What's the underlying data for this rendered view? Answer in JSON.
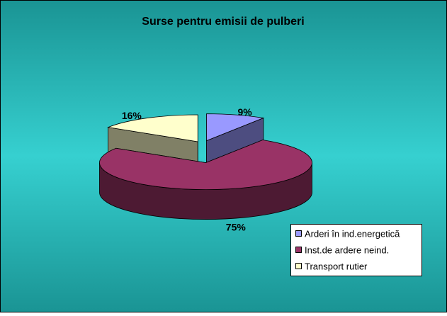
{
  "chart_data": {
    "type": "pie",
    "title": "Surse pentru emisii de pulberi",
    "categories": [
      "Arderi în ind.energetică",
      "Inst.de ardere neind.",
      "Transport rutier"
    ],
    "values": [
      9,
      75,
      16
    ],
    "value_labels": [
      "9%",
      "75%",
      "16%"
    ],
    "colors": [
      "#9999ff",
      "#993366",
      "#ffffcc"
    ]
  }
}
